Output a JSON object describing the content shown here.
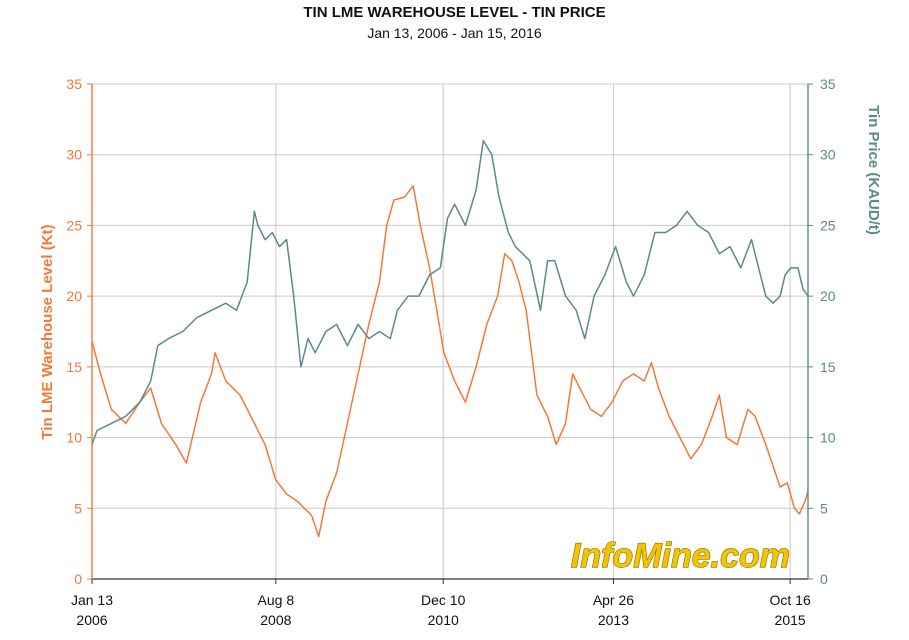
{
  "chart_data": {
    "type": "line",
    "title": "TIN LME WAREHOUSE LEVEL - TIN PRICE",
    "subtitle": "Jan 13, 2006 - Jan 15, 2016",
    "ylabel_left": "Tin LME Warehouse Level (Kt)",
    "ylabel_right": "Tin Price (KAUD/t)",
    "ylim_left": [
      0,
      35
    ],
    "ylim_right": [
      0,
      35
    ],
    "yticks": [
      "0",
      "5",
      "10",
      "15",
      "20",
      "25",
      "30",
      "35"
    ],
    "xlim": [
      2006.03,
      2016.04
    ],
    "xticks": [
      {
        "x": 2006.03,
        "line1": "Jan 13",
        "line2": "2006"
      },
      {
        "x": 2008.6,
        "line1": "Aug 8",
        "line2": "2008"
      },
      {
        "x": 2010.94,
        "line1": "Dec 10",
        "line2": "2010"
      },
      {
        "x": 2013.32,
        "line1": "Apr 26",
        "line2": "2013"
      },
      {
        "x": 2015.79,
        "line1": "Oct 16",
        "line2": "2015"
      }
    ],
    "grid": true,
    "watermark": "InfoMine.com",
    "colors": {
      "warehouse": "#f07a3a",
      "price": "#5b8a8a",
      "grid": "#c8c8c8"
    },
    "series": [
      {
        "name": "Tin LME Warehouse Level (Kt)",
        "axis": "left",
        "points": [
          [
            2006.03,
            16.8
          ],
          [
            2006.15,
            14.5
          ],
          [
            2006.3,
            12.0
          ],
          [
            2006.5,
            11.0
          ],
          [
            2006.7,
            12.5
          ],
          [
            2006.85,
            13.5
          ],
          [
            2007.0,
            11.0
          ],
          [
            2007.2,
            9.5
          ],
          [
            2007.35,
            8.2
          ],
          [
            2007.55,
            12.5
          ],
          [
            2007.7,
            14.5
          ],
          [
            2007.75,
            16.0
          ],
          [
            2007.9,
            14.0
          ],
          [
            2008.1,
            13.0
          ],
          [
            2008.3,
            11.0
          ],
          [
            2008.45,
            9.5
          ],
          [
            2008.6,
            7.0
          ],
          [
            2008.75,
            6.0
          ],
          [
            2008.9,
            5.5
          ],
          [
            2009.0,
            5.0
          ],
          [
            2009.1,
            4.5
          ],
          [
            2009.2,
            3.0
          ],
          [
            2009.3,
            5.5
          ],
          [
            2009.45,
            7.5
          ],
          [
            2009.6,
            11.0
          ],
          [
            2009.75,
            14.5
          ],
          [
            2009.9,
            18.0
          ],
          [
            2010.05,
            21.0
          ],
          [
            2010.15,
            25.0
          ],
          [
            2010.25,
            26.8
          ],
          [
            2010.4,
            27.0
          ],
          [
            2010.52,
            27.8
          ],
          [
            2010.62,
            25.0
          ],
          [
            2010.75,
            22.0
          ],
          [
            2010.85,
            19.0
          ],
          [
            2010.95,
            16.0
          ],
          [
            2011.1,
            14.0
          ],
          [
            2011.25,
            12.5
          ],
          [
            2011.4,
            15.0
          ],
          [
            2011.55,
            18.0
          ],
          [
            2011.7,
            20.0
          ],
          [
            2011.8,
            23.0
          ],
          [
            2011.9,
            22.5
          ],
          [
            2012.0,
            21.0
          ],
          [
            2012.1,
            19.0
          ],
          [
            2012.25,
            13.0
          ],
          [
            2012.4,
            11.5
          ],
          [
            2012.52,
            9.5
          ],
          [
            2012.65,
            11.0
          ],
          [
            2012.75,
            14.5
          ],
          [
            2012.85,
            13.5
          ],
          [
            2013.0,
            12.0
          ],
          [
            2013.15,
            11.5
          ],
          [
            2013.3,
            12.5
          ],
          [
            2013.45,
            14.0
          ],
          [
            2013.6,
            14.5
          ],
          [
            2013.75,
            14.0
          ],
          [
            2013.85,
            15.3
          ],
          [
            2013.95,
            13.5
          ],
          [
            2014.1,
            11.5
          ],
          [
            2014.25,
            10.0
          ],
          [
            2014.4,
            8.5
          ],
          [
            2014.55,
            9.5
          ],
          [
            2014.7,
            11.5
          ],
          [
            2014.8,
            13.0
          ],
          [
            2014.9,
            10.0
          ],
          [
            2015.05,
            9.5
          ],
          [
            2015.2,
            12.0
          ],
          [
            2015.3,
            11.5
          ],
          [
            2015.45,
            9.5
          ],
          [
            2015.55,
            8.0
          ],
          [
            2015.65,
            6.5
          ],
          [
            2015.75,
            6.8
          ],
          [
            2015.85,
            5.0
          ],
          [
            2015.92,
            4.6
          ],
          [
            2016.0,
            5.5
          ],
          [
            2016.04,
            6.2
          ]
        ]
      },
      {
        "name": "Tin Price (KAUD/t)",
        "axis": "right",
        "points": [
          [
            2006.03,
            9.5
          ],
          [
            2006.1,
            10.5
          ],
          [
            2006.3,
            11.0
          ],
          [
            2006.5,
            11.5
          ],
          [
            2006.7,
            12.5
          ],
          [
            2006.85,
            14.0
          ],
          [
            2006.95,
            16.5
          ],
          [
            2007.1,
            17.0
          ],
          [
            2007.3,
            17.5
          ],
          [
            2007.5,
            18.5
          ],
          [
            2007.7,
            19.0
          ],
          [
            2007.9,
            19.5
          ],
          [
            2008.05,
            19.0
          ],
          [
            2008.2,
            21.0
          ],
          [
            2008.3,
            26.0
          ],
          [
            2008.35,
            25.0
          ],
          [
            2008.45,
            24.0
          ],
          [
            2008.55,
            24.5
          ],
          [
            2008.65,
            23.5
          ],
          [
            2008.75,
            24.0
          ],
          [
            2008.85,
            20.0
          ],
          [
            2008.95,
            15.0
          ],
          [
            2009.05,
            17.0
          ],
          [
            2009.15,
            16.0
          ],
          [
            2009.3,
            17.5
          ],
          [
            2009.45,
            18.0
          ],
          [
            2009.6,
            16.5
          ],
          [
            2009.75,
            18.0
          ],
          [
            2009.9,
            17.0
          ],
          [
            2010.05,
            17.5
          ],
          [
            2010.2,
            17.0
          ],
          [
            2010.3,
            19.0
          ],
          [
            2010.45,
            20.0
          ],
          [
            2010.6,
            20.0
          ],
          [
            2010.75,
            21.5
          ],
          [
            2010.9,
            22.0
          ],
          [
            2011.0,
            25.5
          ],
          [
            2011.1,
            26.5
          ],
          [
            2011.25,
            25.0
          ],
          [
            2011.4,
            27.5
          ],
          [
            2011.5,
            31.0
          ],
          [
            2011.62,
            30.0
          ],
          [
            2011.72,
            27.0
          ],
          [
            2011.85,
            24.5
          ],
          [
            2011.95,
            23.5
          ],
          [
            2012.05,
            23.0
          ],
          [
            2012.15,
            22.5
          ],
          [
            2012.3,
            19.0
          ],
          [
            2012.4,
            22.5
          ],
          [
            2012.5,
            22.5
          ],
          [
            2012.65,
            20.0
          ],
          [
            2012.8,
            19.0
          ],
          [
            2012.92,
            17.0
          ],
          [
            2013.05,
            20.0
          ],
          [
            2013.2,
            21.5
          ],
          [
            2013.35,
            23.5
          ],
          [
            2013.5,
            21.0
          ],
          [
            2013.6,
            20.0
          ],
          [
            2013.75,
            21.5
          ],
          [
            2013.9,
            24.5
          ],
          [
            2014.05,
            24.5
          ],
          [
            2014.2,
            25.0
          ],
          [
            2014.35,
            26.0
          ],
          [
            2014.5,
            25.0
          ],
          [
            2014.65,
            24.5
          ],
          [
            2014.8,
            23.0
          ],
          [
            2014.95,
            23.5
          ],
          [
            2015.1,
            22.0
          ],
          [
            2015.25,
            24.0
          ],
          [
            2015.35,
            22.0
          ],
          [
            2015.45,
            20.0
          ],
          [
            2015.55,
            19.5
          ],
          [
            2015.65,
            20.0
          ],
          [
            2015.72,
            21.5
          ],
          [
            2015.8,
            22.0
          ],
          [
            2015.9,
            22.0
          ],
          [
            2015.97,
            20.5
          ],
          [
            2016.04,
            20.0
          ]
        ]
      }
    ]
  }
}
